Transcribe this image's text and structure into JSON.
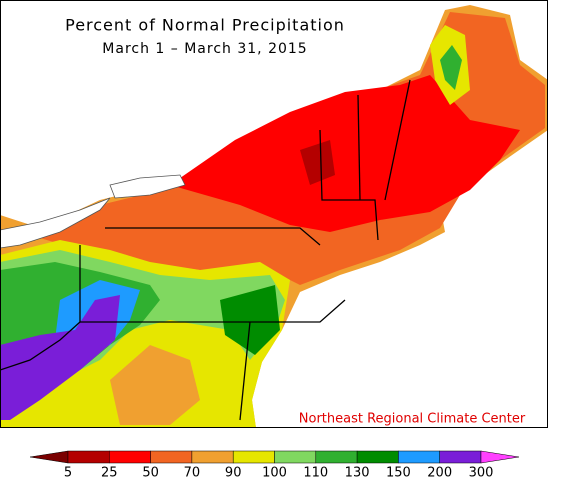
{
  "title": "Percent of Normal Precipitation",
  "subtitle": "March 1 – March 31, 2015",
  "credit": "Northeast Regional Climate Center",
  "legend": {
    "labels": [
      5,
      25,
      50,
      70,
      90,
      100,
      110,
      130,
      150,
      200,
      300
    ],
    "colors": [
      "#7a0000",
      "#b40000",
      "#ff0000",
      "#f26522",
      "#f0a030",
      "#e6e600",
      "#80d860",
      "#30b030",
      "#008c00",
      "#1e9bff",
      "#7a1ed8",
      "#a000c8",
      "#ff40ff"
    ]
  }
}
